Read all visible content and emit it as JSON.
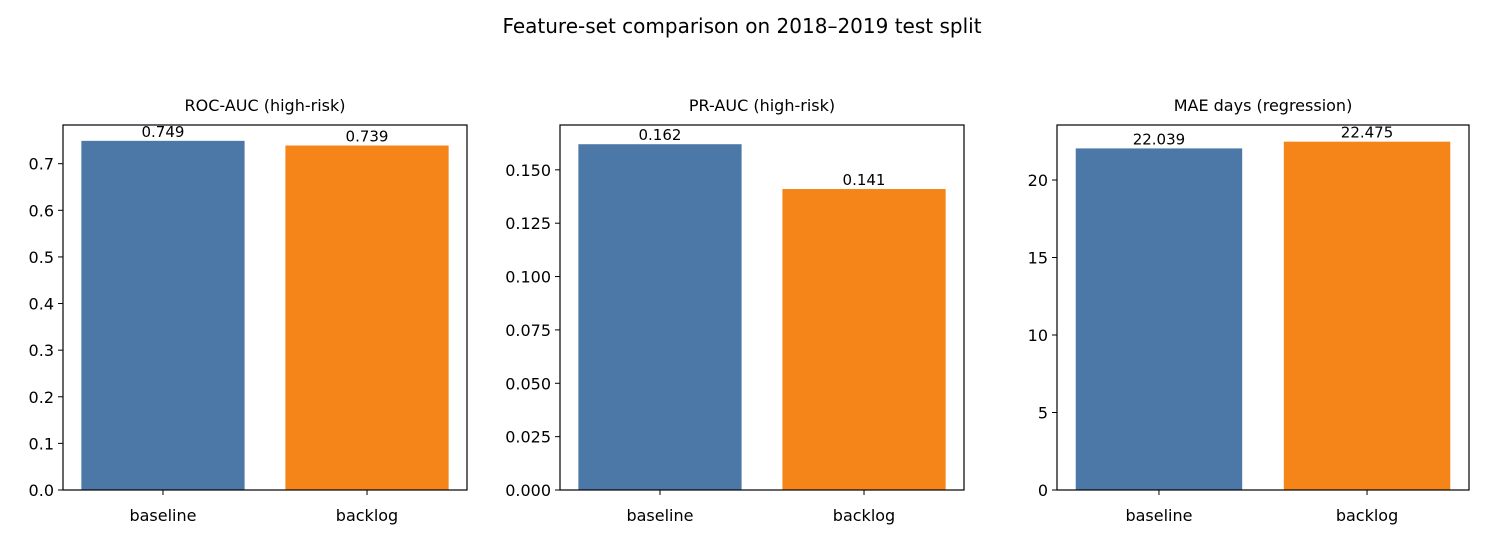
{
  "title": "Feature-set comparison on 2018–2019 test split",
  "chart_data": [
    {
      "type": "bar",
      "title": "ROC-AUC (high-risk)",
      "categories": [
        "baseline",
        "backlog"
      ],
      "values": [
        0.749,
        0.739
      ],
      "colors": [
        "#4c78a8",
        "#f58518"
      ],
      "ylim": [
        0,
        0.783
      ],
      "yticks": [
        {
          "value": 0,
          "label": "0.0"
        },
        0.1,
        0.2,
        0.3,
        0.4,
        0.5,
        0.6,
        0.7
      ]
    },
    {
      "type": "bar",
      "title": "PR-AUC (high-risk)",
      "categories": [
        "baseline",
        "backlog"
      ],
      "values": [
        0.162,
        0.141
      ],
      "colors": [
        "#4c78a8",
        "#f58518"
      ],
      "ylim": [
        0,
        0.171
      ],
      "yticks": [
        {
          "value": 0,
          "label": "0.000"
        },
        {
          "value": 0.025,
          "label": "0.025"
        },
        {
          "value": 0.05,
          "label": "0.050"
        },
        {
          "value": 0.075,
          "label": "0.075"
        },
        {
          "value": 0.1,
          "label": "0.100"
        },
        {
          "value": 0.125,
          "label": "0.125"
        },
        {
          "value": 0.15,
          "label": "0.150"
        }
      ]
    },
    {
      "type": "bar",
      "title": "MAE days (regression)",
      "categories": [
        "baseline",
        "backlog"
      ],
      "values": [
        22.039,
        22.475
      ],
      "colors": [
        "#4c78a8",
        "#f58518"
      ],
      "ylim": [
        0,
        23.55
      ],
      "yticks": [
        0,
        5,
        10,
        15,
        20
      ]
    }
  ]
}
